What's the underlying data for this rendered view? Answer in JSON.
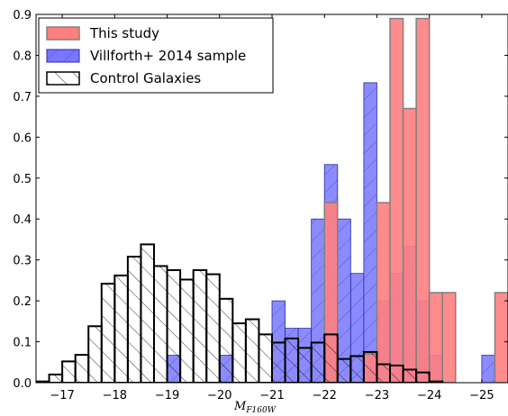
{
  "chart_data": {
    "type": "bar",
    "xlabel_main": "M",
    "xlabel_sub": "F160W",
    "xlim": [
      -16.5,
      -25.5
    ],
    "ylim": [
      0,
      0.9
    ],
    "bin_width": 0.25,
    "xticks": [
      -17,
      -18,
      -19,
      -20,
      -21,
      -22,
      -23,
      -24,
      -25
    ],
    "xtick_labels": [
      "−17",
      "−18",
      "−19",
      "−20",
      "−21",
      "−22",
      "−23",
      "−24",
      "−25"
    ],
    "yticks": [
      0.0,
      0.1,
      0.2,
      0.3,
      0.4,
      0.5,
      0.6,
      0.7,
      0.8,
      0.9
    ],
    "ytick_labels": [
      "0.0",
      "0.1",
      "0.2",
      "0.3",
      "0.4",
      "0.5",
      "0.6",
      "0.7",
      "0.8",
      "0.9"
    ],
    "legend_position": "top-left",
    "series": [
      {
        "name": "This study",
        "fill": "#ff7f7f",
        "stroke": "#808080",
        "hatch": "none",
        "bins": [
          {
            "x": -22.0,
            "y": 0.44
          },
          {
            "x": -22.75,
            "y": 0.07
          },
          {
            "x": -23.0,
            "y": 0.44
          },
          {
            "x": -23.25,
            "y": 0.89
          },
          {
            "x": -23.5,
            "y": 0.67
          },
          {
            "x": -23.75,
            "y": 0.89
          },
          {
            "x": -24.0,
            "y": 0.22
          },
          {
            "x": -24.25,
            "y": 0.22
          },
          {
            "x": -25.25,
            "y": 0.22
          }
        ]
      },
      {
        "name": "Villforth+ 2014 sample",
        "fill": "#7777ff",
        "stroke": "#2a2a9a",
        "hatch": "diag",
        "bins": [
          {
            "x": -19.0,
            "y": 0.067
          },
          {
            "x": -20.0,
            "y": 0.067
          },
          {
            "x": -21.0,
            "y": 0.2
          },
          {
            "x": -21.25,
            "y": 0.133
          },
          {
            "x": -21.5,
            "y": 0.133
          },
          {
            "x": -21.75,
            "y": 0.4
          },
          {
            "x": -22.0,
            "y": 0.533
          },
          {
            "x": -22.25,
            "y": 0.4
          },
          {
            "x": -22.5,
            "y": 0.267
          },
          {
            "x": -22.75,
            "y": 0.733
          },
          {
            "x": -23.0,
            "y": 0.2
          },
          {
            "x": -23.25,
            "y": 0.267
          },
          {
            "x": -23.5,
            "y": 0.333
          },
          {
            "x": -23.75,
            "y": 0.2
          },
          {
            "x": -24.0,
            "y": 0.067
          },
          {
            "x": -25.0,
            "y": 0.067
          }
        ]
      },
      {
        "name": "Control Galaxies",
        "fill": "#ffffff",
        "stroke": "#000000",
        "hatch": "anti",
        "bins": [
          {
            "x": -16.5,
            "y": 0.003
          },
          {
            "x": -16.75,
            "y": 0.02
          },
          {
            "x": -17.0,
            "y": 0.052
          },
          {
            "x": -17.25,
            "y": 0.068
          },
          {
            "x": -17.5,
            "y": 0.138
          },
          {
            "x": -17.75,
            "y": 0.242
          },
          {
            "x": -18.0,
            "y": 0.262
          },
          {
            "x": -18.25,
            "y": 0.308
          },
          {
            "x": -18.5,
            "y": 0.338
          },
          {
            "x": -18.75,
            "y": 0.285
          },
          {
            "x": -19.0,
            "y": 0.275
          },
          {
            "x": -19.25,
            "y": 0.252
          },
          {
            "x": -19.5,
            "y": 0.275
          },
          {
            "x": -19.75,
            "y": 0.265
          },
          {
            "x": -20.0,
            "y": 0.205
          },
          {
            "x": -20.25,
            "y": 0.145
          },
          {
            "x": -20.5,
            "y": 0.155
          },
          {
            "x": -20.75,
            "y": 0.118
          },
          {
            "x": -21.0,
            "y": 0.098
          },
          {
            "x": -21.25,
            "y": 0.108
          },
          {
            "x": -21.5,
            "y": 0.085
          },
          {
            "x": -21.75,
            "y": 0.098
          },
          {
            "x": -22.0,
            "y": 0.118
          },
          {
            "x": -22.25,
            "y": 0.058
          },
          {
            "x": -22.5,
            "y": 0.065
          },
          {
            "x": -22.75,
            "y": 0.075
          },
          {
            "x": -23.0,
            "y": 0.045
          },
          {
            "x": -23.25,
            "y": 0.042
          },
          {
            "x": -23.5,
            "y": 0.032
          },
          {
            "x": -23.75,
            "y": 0.025
          },
          {
            "x": -24.0,
            "y": 0.003
          }
        ]
      }
    ]
  }
}
